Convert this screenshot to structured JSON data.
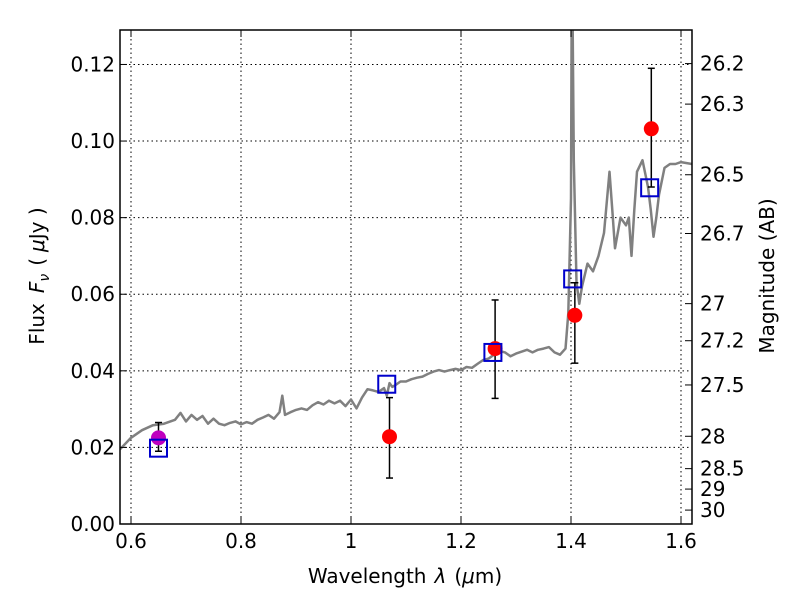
{
  "chart_data": {
    "type": "scatter",
    "xlabel_text": "Wavelength",
    "xlabel_symbol": "λ",
    "xlabel_unit_open": "(",
    "xlabel_unit_mu": "μ",
    "xlabel_unit_rest": "m)",
    "ylabel_text": "Flux",
    "ylabel_symbol": "F",
    "ylabel_subscript": "ν",
    "ylabel_unit_open": "(",
    "ylabel_unit_mu": "μ",
    "ylabel_unit_rest": "Jy )",
    "y2label": "Magnitude (AB)",
    "xlim": [
      0.58,
      1.62
    ],
    "ylim": [
      0.0,
      0.129
    ],
    "grid": true,
    "x_ticks": [
      {
        "value": 0.6,
        "label": "0.6"
      },
      {
        "value": 0.8,
        "label": "0.8"
      },
      {
        "value": 1.0,
        "label": "1"
      },
      {
        "value": 1.2,
        "label": "1.2"
      },
      {
        "value": 1.4,
        "label": "1.4"
      },
      {
        "value": 1.6,
        "label": "1.6"
      }
    ],
    "y_ticks": [
      {
        "value": 0.0,
        "label": "0.00"
      },
      {
        "value": 0.02,
        "label": "0.02"
      },
      {
        "value": 0.04,
        "label": "0.04"
      },
      {
        "value": 0.06,
        "label": "0.06"
      },
      {
        "value": 0.08,
        "label": "0.08"
      },
      {
        "value": 0.1,
        "label": "0.10"
      },
      {
        "value": 0.12,
        "label": "0.12"
      }
    ],
    "y2_ticks": [
      {
        "value": 26.2,
        "label": "26.2"
      },
      {
        "value": 26.3,
        "label": "26.3"
      },
      {
        "value": 26.5,
        "label": "26.5"
      },
      {
        "value": 26.7,
        "label": "26.7"
      },
      {
        "value": 27.0,
        "label": "27"
      },
      {
        "value": 27.2,
        "label": "27.2"
      },
      {
        "value": 27.5,
        "label": "27.5"
      },
      {
        "value": 28.0,
        "label": "28"
      },
      {
        "value": 28.5,
        "label": "28.5"
      },
      {
        "value": 29.0,
        "label": "29"
      },
      {
        "value": 30.0,
        "label": "30"
      }
    ],
    "series": [
      {
        "kind": "line",
        "color": "#808080",
        "points": [
          [
            0.58,
            0.0195
          ],
          [
            0.6,
            0.0225
          ],
          [
            0.62,
            0.0245
          ],
          [
            0.64,
            0.0258
          ],
          [
            0.66,
            0.0262
          ],
          [
            0.68,
            0.0272
          ],
          [
            0.69,
            0.029
          ],
          [
            0.7,
            0.0268
          ],
          [
            0.71,
            0.0285
          ],
          [
            0.72,
            0.0272
          ],
          [
            0.73,
            0.0282
          ],
          [
            0.74,
            0.0262
          ],
          [
            0.75,
            0.0275
          ],
          [
            0.76,
            0.0262
          ],
          [
            0.77,
            0.0258
          ],
          [
            0.78,
            0.0264
          ],
          [
            0.79,
            0.0268
          ],
          [
            0.8,
            0.026
          ],
          [
            0.81,
            0.0266
          ],
          [
            0.82,
            0.0262
          ],
          [
            0.83,
            0.0272
          ],
          [
            0.84,
            0.0278
          ],
          [
            0.85,
            0.0285
          ],
          [
            0.86,
            0.0275
          ],
          [
            0.87,
            0.0292
          ],
          [
            0.875,
            0.0335
          ],
          [
            0.88,
            0.0285
          ],
          [
            0.89,
            0.0292
          ],
          [
            0.9,
            0.0298
          ],
          [
            0.91,
            0.0302
          ],
          [
            0.92,
            0.0298
          ],
          [
            0.93,
            0.031
          ],
          [
            0.94,
            0.0318
          ],
          [
            0.95,
            0.0312
          ],
          [
            0.96,
            0.0322
          ],
          [
            0.97,
            0.0315
          ],
          [
            0.98,
            0.0322
          ],
          [
            0.99,
            0.0308
          ],
          [
            1.0,
            0.0325
          ],
          [
            1.01,
            0.0302
          ],
          [
            1.02,
            0.033
          ],
          [
            1.03,
            0.0352
          ],
          [
            1.04,
            0.0349
          ],
          [
            1.05,
            0.0345
          ],
          [
            1.06,
            0.0355
          ],
          [
            1.065,
            0.0335
          ],
          [
            1.07,
            0.0368
          ],
          [
            1.075,
            0.0358
          ],
          [
            1.08,
            0.0362
          ],
          [
            1.09,
            0.0372
          ],
          [
            1.1,
            0.0372
          ],
          [
            1.11,
            0.0378
          ],
          [
            1.12,
            0.0382
          ],
          [
            1.13,
            0.0385
          ],
          [
            1.14,
            0.0392
          ],
          [
            1.15,
            0.0398
          ],
          [
            1.16,
            0.0402
          ],
          [
            1.17,
            0.0398
          ],
          [
            1.18,
            0.0402
          ],
          [
            1.19,
            0.0405
          ],
          [
            1.2,
            0.0402
          ],
          [
            1.21,
            0.041
          ],
          [
            1.22,
            0.0408
          ],
          [
            1.23,
            0.0418
          ],
          [
            1.24,
            0.0428
          ],
          [
            1.25,
            0.0432
          ],
          [
            1.26,
            0.0442
          ],
          [
            1.27,
            0.0452
          ],
          [
            1.28,
            0.0448
          ],
          [
            1.29,
            0.0438
          ],
          [
            1.3,
            0.0445
          ],
          [
            1.31,
            0.045
          ],
          [
            1.32,
            0.0455
          ],
          [
            1.33,
            0.0448
          ],
          [
            1.34,
            0.0455
          ],
          [
            1.35,
            0.0458
          ],
          [
            1.36,
            0.0462
          ],
          [
            1.37,
            0.0448
          ],
          [
            1.38,
            0.0442
          ],
          [
            1.39,
            0.0458
          ],
          [
            1.395,
            0.055
          ],
          [
            1.4,
            0.085
          ],
          [
            1.401,
            0.129
          ],
          [
            1.403,
            0.129
          ],
          [
            1.405,
            0.095
          ],
          [
            1.41,
            0.063
          ],
          [
            1.415,
            0.0575
          ],
          [
            1.42,
            0.062
          ],
          [
            1.43,
            0.068
          ],
          [
            1.44,
            0.066
          ],
          [
            1.45,
            0.07
          ],
          [
            1.46,
            0.076
          ],
          [
            1.47,
            0.092
          ],
          [
            1.475,
            0.082
          ],
          [
            1.48,
            0.072
          ],
          [
            1.49,
            0.08
          ],
          [
            1.5,
            0.078
          ],
          [
            1.505,
            0.08
          ],
          [
            1.51,
            0.07
          ],
          [
            1.515,
            0.082
          ],
          [
            1.52,
            0.092
          ],
          [
            1.53,
            0.095
          ],
          [
            1.54,
            0.088
          ],
          [
            1.545,
            0.082
          ],
          [
            1.55,
            0.075
          ],
          [
            1.555,
            0.08
          ],
          [
            1.56,
            0.086
          ],
          [
            1.57,
            0.093
          ],
          [
            1.58,
            0.094
          ],
          [
            1.59,
            0.094
          ],
          [
            1.6,
            0.0945
          ],
          [
            1.62,
            0.094
          ]
        ]
      },
      {
        "kind": "errorbar",
        "color": "#000000",
        "points": [
          {
            "x": 0.65,
            "y": 0.0225,
            "ylo": 0.019,
            "yhi": 0.0265
          },
          {
            "x": 1.07,
            "y": 0.0228,
            "ylo": 0.012,
            "yhi": 0.033
          },
          {
            "x": 1.262,
            "y": 0.0458,
            "ylo": 0.0328,
            "yhi": 0.0585
          },
          {
            "x": 1.407,
            "y": 0.0545,
            "ylo": 0.042,
            "yhi": 0.063
          },
          {
            "x": 1.546,
            "y": 0.1032,
            "ylo": 0.088,
            "yhi": 0.119
          }
        ]
      },
      {
        "kind": "scatter",
        "marker": "circle",
        "color": "#ff0000",
        "points": [
          [
            0.65,
            0.0225
          ],
          [
            1.07,
            0.0228
          ],
          [
            1.262,
            0.0458
          ],
          [
            1.407,
            0.0545
          ],
          [
            1.546,
            0.1032
          ]
        ],
        "highlight": {
          "index": 0,
          "color": "#bf00bf"
        }
      },
      {
        "kind": "scatter",
        "marker": "open-square",
        "color": "#0000cc",
        "points": [
          [
            0.65,
            0.0198
          ],
          [
            1.065,
            0.0365
          ],
          [
            1.258,
            0.0448
          ],
          [
            1.403,
            0.064
          ],
          [
            1.543,
            0.0878
          ]
        ]
      }
    ]
  }
}
